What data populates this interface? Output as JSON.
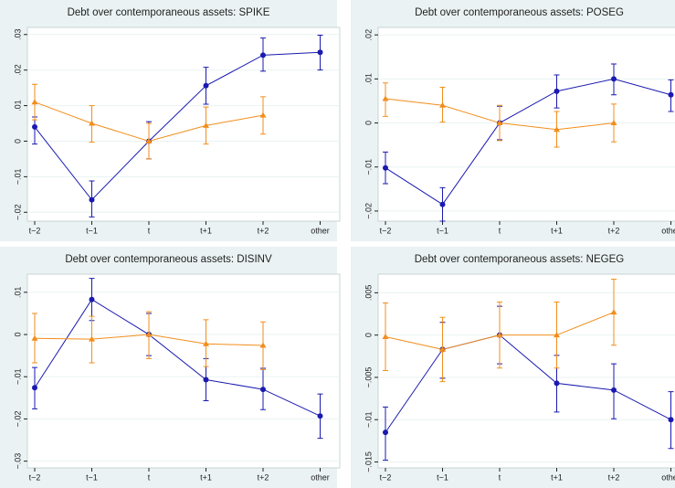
{
  "chart_data": [
    {
      "type": "line",
      "title": "Debt over contemporaneous assets: SPIKE",
      "categories": [
        "t−2",
        "t−1",
        "t",
        "t+1",
        "t+2",
        "other"
      ],
      "ylim": [
        -0.0225,
        0.032
      ],
      "yticks": [
        {
          "value": -0.02,
          "label": "−.02"
        },
        {
          "value": -0.01,
          "label": "−.01"
        },
        0,
        {
          "value": 0.01,
          "label": ".01"
        },
        {
          "value": 0.02,
          "label": ".02"
        },
        {
          "value": 0.03,
          "label": ".03"
        }
      ],
      "grid": true,
      "series": [
        {
          "color": "#1a1ab0",
          "marker": "circle",
          "values": [
            0.004,
            -0.0165,
            0,
            0.0156,
            0.0242,
            0.025
          ],
          "lower": [
            -0.0008,
            -0.0213,
            -0.005,
            0.0104,
            0.0197,
            0.02
          ],
          "upper": [
            0.0068,
            -0.0112,
            0.0055,
            0.0208,
            0.029,
            0.0298
          ]
        },
        {
          "color": "#f28e1c",
          "marker": "triangle",
          "values": [
            0.011,
            0.005,
            0,
            0.0044,
            0.0073,
            null
          ],
          "lower": [
            0.006,
            -0.0003,
            -0.005,
            -0.0008,
            0.002,
            null
          ],
          "upper": [
            0.016,
            0.01,
            0.005,
            0.0096,
            0.0125,
            null
          ]
        }
      ]
    },
    {
      "type": "line",
      "title": "Debt over contemporaneous assets: POSEG",
      "categories": [
        "t−2",
        "t−1",
        "t",
        "t+1",
        "t+2",
        "other"
      ],
      "ylim": [
        -0.0223,
        0.0217
      ],
      "yticks": [
        {
          "value": -0.02,
          "label": "−.02"
        },
        {
          "value": -0.01,
          "label": "−.01"
        },
        0,
        {
          "value": 0.01,
          "label": ".01"
        },
        {
          "value": 0.02,
          "label": ".02"
        }
      ],
      "grid": true,
      "series": [
        {
          "color": "#1a1ab0",
          "marker": "circle",
          "values": [
            -0.0102,
            -0.0185,
            0,
            0.0072,
            0.01,
            0.0064
          ],
          "lower": [
            -0.0138,
            -0.0223,
            -0.0038,
            0.0034,
            0.0064,
            0.0026
          ],
          "upper": [
            -0.0066,
            -0.0147,
            0.0038,
            0.0109,
            0.0134,
            0.0098
          ]
        },
        {
          "color": "#f28e1c",
          "marker": "triangle",
          "values": [
            0.0055,
            0.004,
            0,
            -0.0015,
            0,
            null
          ],
          "lower": [
            0.0015,
            0.0002,
            -0.004,
            -0.0055,
            -0.0043,
            null
          ],
          "upper": [
            0.0091,
            0.0081,
            0.004,
            0.0026,
            0.0043,
            null
          ]
        }
      ]
    },
    {
      "type": "line",
      "title": "Debt over contemporaneous assets: DISINV",
      "categories": [
        "t−2",
        "t−1",
        "t",
        "t+1",
        "t+2",
        "other"
      ],
      "ylim": [
        -0.0316,
        0.0143
      ],
      "yticks": [
        {
          "value": -0.03,
          "label": "−.03"
        },
        {
          "value": -0.02,
          "label": "−.02"
        },
        {
          "value": -0.01,
          "label": "−.01"
        },
        0,
        {
          "value": 0.01,
          "label": ".01"
        }
      ],
      "grid": true,
      "series": [
        {
          "color": "#1a1ab0",
          "marker": "circle",
          "values": [
            -0.0126,
            0.0083,
            0,
            -0.0107,
            -0.013,
            -0.0193
          ],
          "lower": [
            -0.0176,
            0.0033,
            -0.005,
            -0.0157,
            -0.0178,
            -0.0246
          ],
          "upper": [
            -0.0078,
            0.0133,
            0.005,
            -0.0057,
            -0.008,
            -0.0141
          ]
        },
        {
          "color": "#f28e1c",
          "marker": "triangle",
          "values": [
            -0.0009,
            -0.0011,
            0,
            -0.0022,
            -0.0026,
            null
          ],
          "lower": [
            -0.0067,
            -0.0067,
            -0.0057,
            -0.0076,
            -0.0083,
            null
          ],
          "upper": [
            0.005,
            0.0043,
            0.0054,
            0.0035,
            0.003,
            null
          ]
        }
      ]
    },
    {
      "type": "line",
      "title": "Debt over contemporaneous assets: NEGEG",
      "categories": [
        "t−2",
        "t−1",
        "t",
        "t+1",
        "t+2",
        "other"
      ],
      "ylim": [
        -0.0157,
        0.0072
      ],
      "yticks": [
        {
          "value": -0.015,
          "label": "−.015"
        },
        {
          "value": -0.01,
          "label": "−.01"
        },
        {
          "value": -0.005,
          "label": "−.005"
        },
        0,
        {
          "value": 0.005,
          "label": ".005"
        }
      ],
      "grid": true,
      "series": [
        {
          "color": "#1a1ab0",
          "marker": "circle",
          "values": [
            -0.0115,
            -0.0017,
            0,
            -0.0057,
            -0.0065,
            -0.01
          ],
          "lower": [
            -0.0148,
            -0.0051,
            -0.0034,
            -0.0091,
            -0.0099,
            -0.0134
          ],
          "upper": [
            -0.0085,
            0.0015,
            0.0034,
            -0.0024,
            -0.0034,
            -0.0067
          ]
        },
        {
          "color": "#f28e1c",
          "marker": "triangle",
          "values": [
            -0.0002,
            -0.0017,
            0,
            0,
            0.0027,
            null
          ],
          "lower": [
            -0.0042,
            -0.0055,
            -0.0039,
            -0.0039,
            -0.0012,
            null
          ],
          "upper": [
            0.0038,
            0.0021,
            0.0039,
            0.0039,
            0.0066,
            null
          ]
        }
      ]
    }
  ]
}
